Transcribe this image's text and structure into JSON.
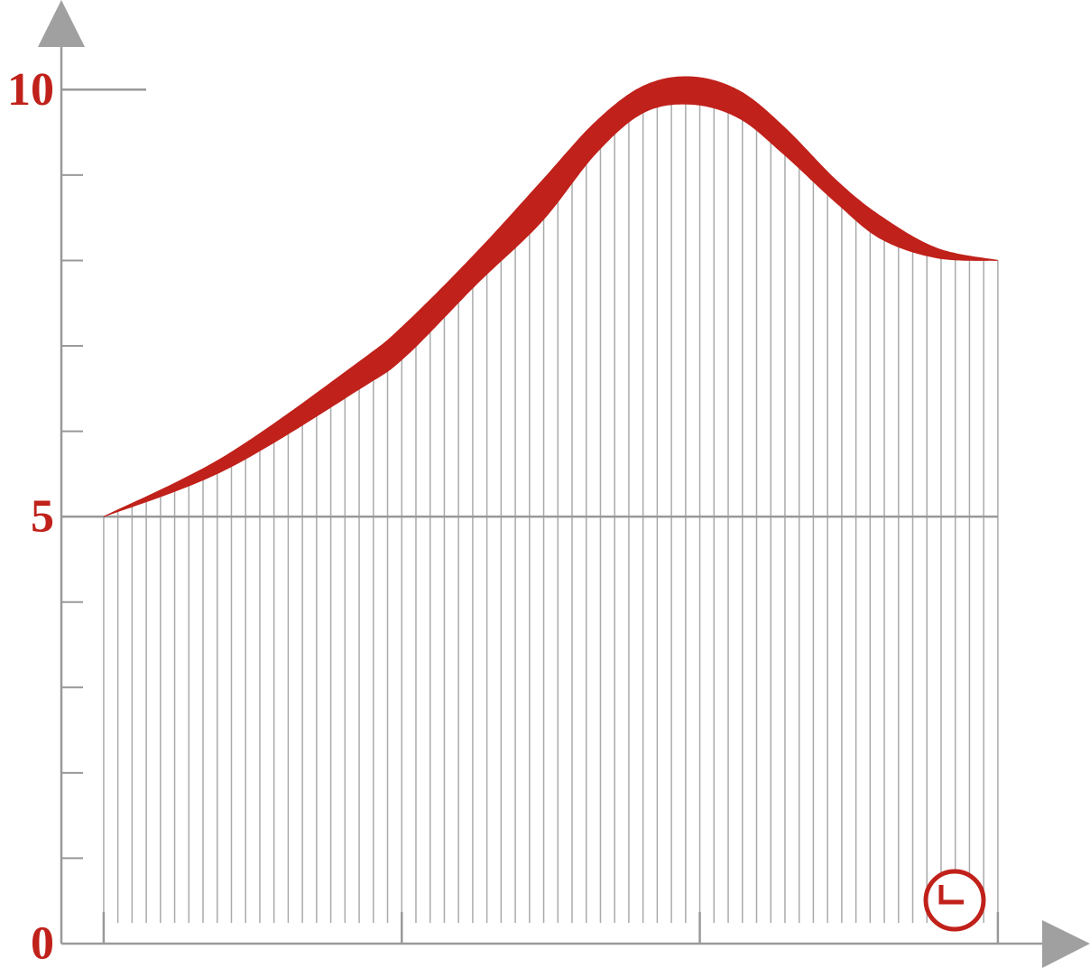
{
  "chart_data": {
    "type": "area",
    "x": [
      0,
      4.08,
      8.6,
      10.1,
      12.5,
      14.7,
      16.5,
      18.1,
      19.7,
      21.3,
      22.8,
      24.6,
      26.1,
      27.97,
      30
    ],
    "series": [
      {
        "color": "#c0211a",
        "values": [
          5.0,
          5.71,
          6.82,
          7.25,
          8.09,
          8.93,
          9.62,
          10.04,
          10.15,
          9.99,
          9.57,
          8.93,
          8.51,
          8.14,
          8.0
        ]
      },
      {
        "color": "#c0211a",
        "values": [
          5.0,
          5.55,
          6.5,
          6.87,
          7.72,
          8.46,
          9.25,
          9.73,
          9.83,
          9.67,
          9.25,
          8.67,
          8.25,
          8.03,
          8.0
        ]
      }
    ],
    "xlim": [
      -1.42,
      33.0
    ],
    "ylim": [
      0,
      11.05
    ],
    "yticks": [
      0,
      5,
      10
    ]
  }
}
